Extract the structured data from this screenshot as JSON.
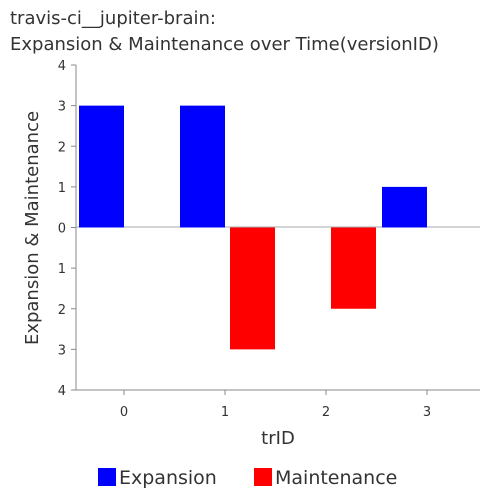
{
  "chart_data": {
    "type": "bar",
    "title": [
      "travis-ci__jupiter-brain:",
      "Expansion & Maintenance over Time(versionID)"
    ],
    "xlabel": "trID",
    "ylabel": "Expansion & Maintenance",
    "categories": [
      "0",
      "1",
      "2",
      "3"
    ],
    "yticks": [
      "4",
      "3",
      "2",
      "1",
      "0",
      "1",
      "2",
      "3",
      "4"
    ],
    "ylim": [
      -4,
      4
    ],
    "grid": false,
    "legend_position": "bottom",
    "series": [
      {
        "name": "Expansion",
        "color": "#0000ff",
        "values": [
          3,
          3,
          0,
          1
        ]
      },
      {
        "name": "Maintenance",
        "color": "#ff0000",
        "values": [
          0,
          -3,
          -2,
          0
        ]
      }
    ]
  }
}
